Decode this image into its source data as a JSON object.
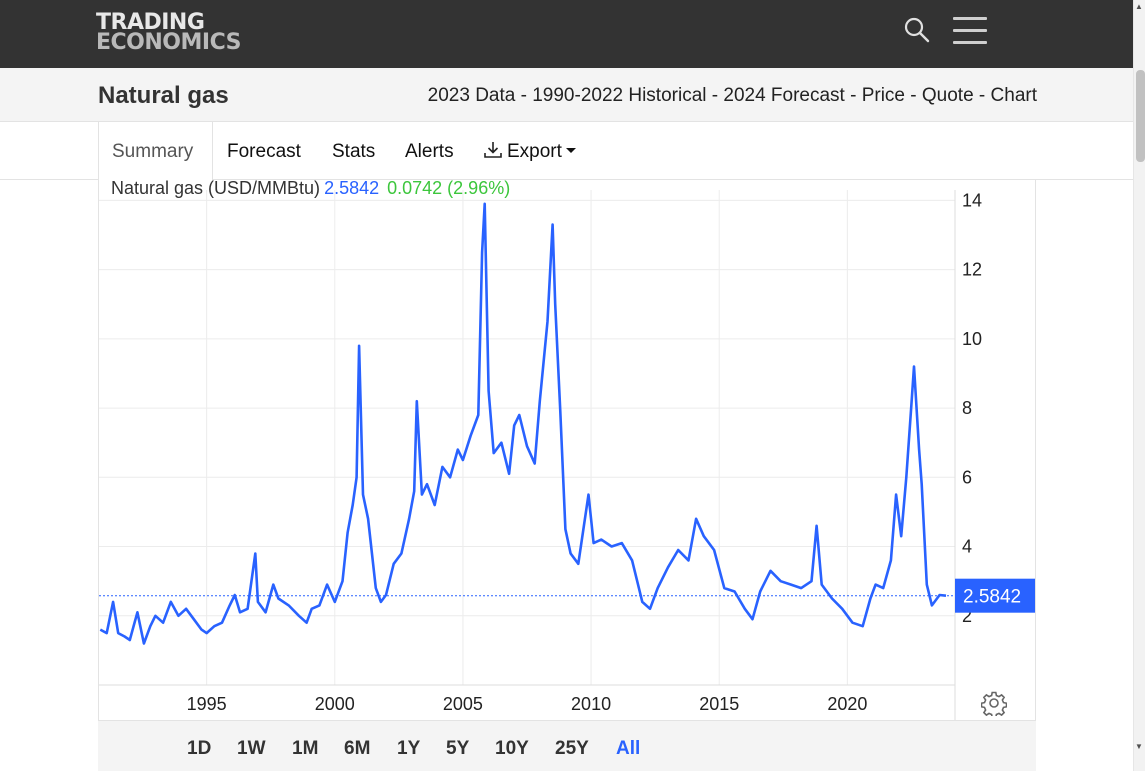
{
  "header": {
    "logo_line1": "TRADING",
    "logo_line2": "ECONOMICS",
    "search_icon": "search-icon",
    "menu_icon": "hamburger-menu-icon"
  },
  "page": {
    "title": "Natural gas",
    "subtitle": "2023 Data - 1990-2022 Historical - 2024 Forecast - Price - Quote - Chart"
  },
  "tabs": [
    {
      "label": "Summary",
      "active": true
    },
    {
      "label": "Forecast"
    },
    {
      "label": "Stats"
    },
    {
      "label": "Alerts"
    },
    {
      "label": "Export",
      "icon": "download-icon"
    }
  ],
  "legend": {
    "name": "Natural gas (USD/MMBtu)",
    "price": "2.5842",
    "change": "0.0742 (2.96%)"
  },
  "ranges": [
    "1D",
    "1W",
    "1M",
    "6M",
    "1Y",
    "5Y",
    "10Y",
    "25Y",
    "All"
  ],
  "active_range": "All",
  "colors": {
    "line": "#2962ff",
    "positive": "#3cc63c",
    "topbar": "#333333"
  },
  "chart_data": {
    "type": "line",
    "title": "",
    "xlabel": "",
    "ylabel": "",
    "x_ticks": [
      "1995",
      "2000",
      "2005",
      "2010",
      "2015",
      "2020"
    ],
    "y_ticks": [
      "2",
      "4",
      "6",
      "8",
      "10",
      "12",
      "14"
    ],
    "xlim": [
      1990.8,
      2024.2
    ],
    "ylim": [
      0,
      14.3
    ],
    "grid": true,
    "last_value_label": "2.5842",
    "series": [
      {
        "x": [
          1990.85,
          1991.1,
          1991.35,
          1991.55,
          1991.8,
          1992.0,
          1992.3,
          1992.55,
          1992.8,
          1993.0,
          1993.3,
          1993.6,
          1993.9,
          1994.2,
          1994.5,
          1994.8,
          1995.0,
          1995.3,
          1995.6,
          1995.9,
          1996.1,
          1996.3,
          1996.6,
          1996.9,
          1997.0,
          1997.3,
          1997.6,
          1997.8,
          1998.2,
          1998.6,
          1998.9,
          1999.1,
          1999.4,
          1999.7,
          2000.0,
          2000.3,
          2000.5,
          2000.7,
          2000.85,
          2000.95,
          2001.1,
          2001.3,
          2001.6,
          2001.8,
          2002.0,
          2002.3,
          2002.6,
          2002.9,
          2003.1,
          2003.2,
          2003.4,
          2003.6,
          2003.9,
          2004.2,
          2004.5,
          2004.8,
          2005.0,
          2005.3,
          2005.6,
          2005.75,
          2005.85,
          2006.0,
          2006.2,
          2006.5,
          2006.8,
          2007.0,
          2007.2,
          2007.5,
          2007.8,
          2008.0,
          2008.3,
          2008.5,
          2008.6,
          2008.8,
          2009.0,
          2009.2,
          2009.5,
          2009.7,
          2009.9,
          2010.1,
          2010.4,
          2010.8,
          2011.2,
          2011.6,
          2012.0,
          2012.3,
          2012.6,
          2013.0,
          2013.4,
          2013.8,
          2014.1,
          2014.4,
          2014.8,
          2015.2,
          2015.6,
          2016.0,
          2016.3,
          2016.6,
          2017.0,
          2017.4,
          2017.8,
          2018.2,
          2018.6,
          2018.8,
          2019.0,
          2019.4,
          2019.8,
          2020.2,
          2020.6,
          2020.9,
          2021.1,
          2021.4,
          2021.7,
          2021.9,
          2022.1,
          2022.3,
          2022.5,
          2022.6,
          2022.8,
          2022.9,
          2023.1,
          2023.3,
          2023.6,
          2023.85
        ],
        "y": [
          1.6,
          1.5,
          2.4,
          1.5,
          1.4,
          1.3,
          2.1,
          1.2,
          1.7,
          2.0,
          1.8,
          2.4,
          2.0,
          2.2,
          1.9,
          1.6,
          1.5,
          1.7,
          1.8,
          2.3,
          2.6,
          2.1,
          2.2,
          3.8,
          2.4,
          2.1,
          2.9,
          2.5,
          2.3,
          2.0,
          1.8,
          2.2,
          2.3,
          2.9,
          2.4,
          3.0,
          4.4,
          5.2,
          6.0,
          9.8,
          5.5,
          4.8,
          2.8,
          2.4,
          2.6,
          3.5,
          3.8,
          4.8,
          5.6,
          8.2,
          5.5,
          5.8,
          5.2,
          6.3,
          6.0,
          6.8,
          6.5,
          7.2,
          7.8,
          12.5,
          13.9,
          8.5,
          6.7,
          7.0,
          6.1,
          7.5,
          7.8,
          6.9,
          6.4,
          8.2,
          10.5,
          13.3,
          11.0,
          7.9,
          4.5,
          3.8,
          3.5,
          4.5,
          5.5,
          4.1,
          4.2,
          4.0,
          4.1,
          3.6,
          2.4,
          2.2,
          2.8,
          3.4,
          3.9,
          3.6,
          4.8,
          4.3,
          3.9,
          2.8,
          2.7,
          2.2,
          1.9,
          2.7,
          3.3,
          3.0,
          2.9,
          2.8,
          3.0,
          4.6,
          2.9,
          2.5,
          2.2,
          1.8,
          1.7,
          2.5,
          2.9,
          2.8,
          3.6,
          5.5,
          4.3,
          6.0,
          8.1,
          9.2,
          6.8,
          5.8,
          2.9,
          2.3,
          2.6,
          2.58
        ]
      }
    ]
  }
}
